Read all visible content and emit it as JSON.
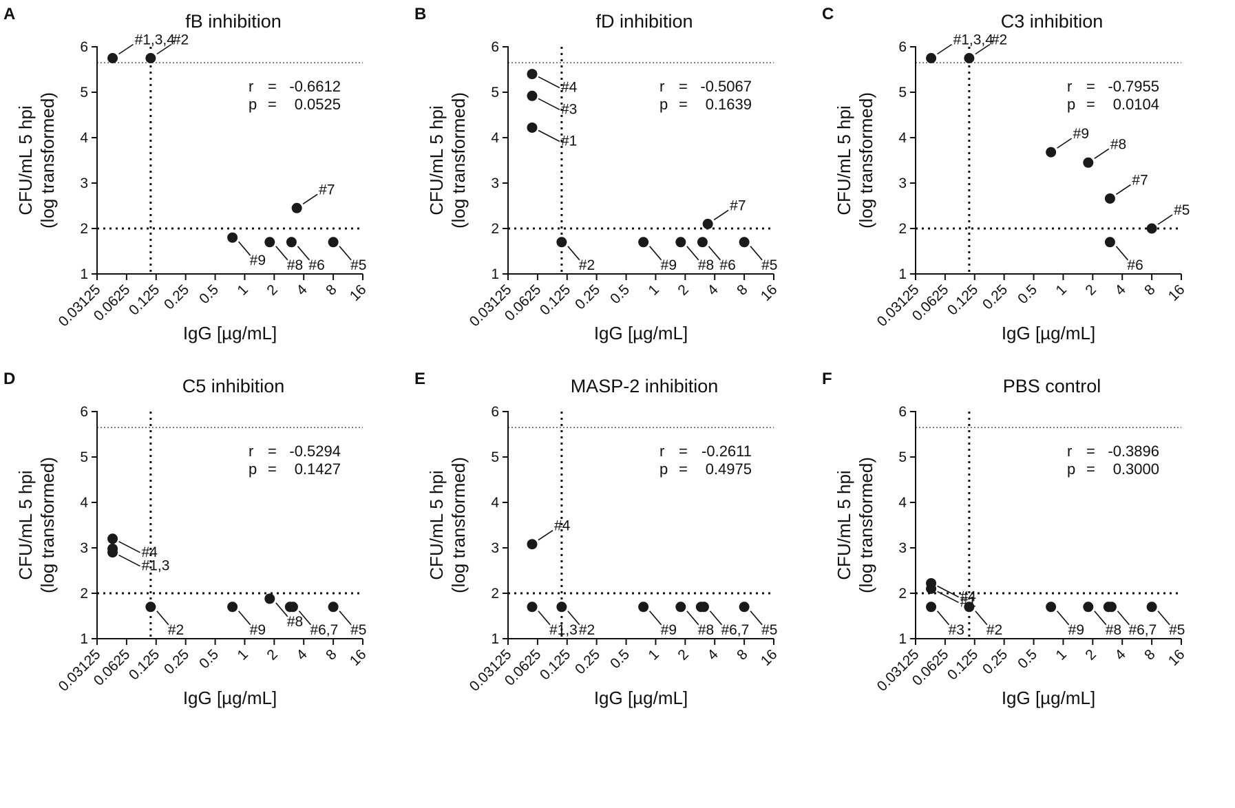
{
  "figure": {
    "shared": {
      "xlabel": "IgG [µg/mL]",
      "ylabel_line1": "CFU/mL 5 hpi",
      "ylabel_line2": "(log transformed)",
      "x_ticks": [
        "0.03125",
        "0.0625",
        "0.125",
        "0.25",
        "0.5",
        "1",
        "2",
        "4",
        "8",
        "16"
      ],
      "y_ticks": [
        "1",
        "2",
        "3",
        "4",
        "5",
        "6"
      ],
      "r_label": "r",
      "p_label": "p",
      "equals": "="
    }
  },
  "chart_data": [
    {
      "type": "scatter",
      "panel": "A",
      "title": "fB inhibition",
      "x_scale": "log2",
      "xlim": [
        0.03125,
        16
      ],
      "ylim": [
        1,
        6
      ],
      "reference_lines": {
        "y_threshold": 2,
        "x_threshold": 0.11,
        "y_detection_limit": 5.65
      },
      "r": "-0.6612",
      "p": "0.0525",
      "points": [
        {
          "x": 0.045,
          "y": 5.75,
          "label": "#1,3,4"
        },
        {
          "x": 0.11,
          "y": 5.75,
          "label": "#2"
        },
        {
          "x": 3.4,
          "y": 2.45,
          "label": "#7"
        },
        {
          "x": 0.75,
          "y": 1.8,
          "label": "#9"
        },
        {
          "x": 1.8,
          "y": 1.7,
          "label": "#8"
        },
        {
          "x": 3.0,
          "y": 1.7,
          "label": "#6"
        },
        {
          "x": 8.0,
          "y": 1.7,
          "label": "#5"
        }
      ]
    },
    {
      "type": "scatter",
      "panel": "B",
      "title": "fD inhibition",
      "x_scale": "log2",
      "xlim": [
        0.03125,
        16
      ],
      "ylim": [
        1,
        6
      ],
      "reference_lines": {
        "y_threshold": 2,
        "x_threshold": 0.11,
        "y_detection_limit": 5.65
      },
      "r": "-0.5067",
      "p": "0.1639",
      "points": [
        {
          "x": 0.055,
          "y": 5.4,
          "label": "#4"
        },
        {
          "x": 0.055,
          "y": 4.92,
          "label": "#3"
        },
        {
          "x": 0.055,
          "y": 4.22,
          "label": "#1"
        },
        {
          "x": 0.11,
          "y": 1.7,
          "label": "#2"
        },
        {
          "x": 3.4,
          "y": 2.1,
          "label": "#7"
        },
        {
          "x": 0.75,
          "y": 1.7,
          "label": "#9"
        },
        {
          "x": 1.8,
          "y": 1.7,
          "label": "#8"
        },
        {
          "x": 3.0,
          "y": 1.7,
          "label": "#6"
        },
        {
          "x": 8.0,
          "y": 1.7,
          "label": "#5"
        }
      ]
    },
    {
      "type": "scatter",
      "panel": "C",
      "title": "C3 inhibition",
      "x_scale": "log2",
      "xlim": [
        0.03125,
        16
      ],
      "ylim": [
        1,
        6
      ],
      "reference_lines": {
        "y_threshold": 2,
        "x_threshold": 0.11,
        "y_detection_limit": 5.65
      },
      "r": "-0.7955",
      "p": "0.0104",
      "points": [
        {
          "x": 0.045,
          "y": 5.75,
          "label": "#1,3,4"
        },
        {
          "x": 0.11,
          "y": 5.75,
          "label": "#2"
        },
        {
          "x": 0.75,
          "y": 3.68,
          "label": "#9"
        },
        {
          "x": 1.8,
          "y": 3.45,
          "label": "#8"
        },
        {
          "x": 3.0,
          "y": 2.66,
          "label": "#7"
        },
        {
          "x": 8.0,
          "y": 2.0,
          "label": "#5"
        },
        {
          "x": 3.0,
          "y": 1.7,
          "label": "#6"
        }
      ]
    },
    {
      "type": "scatter",
      "panel": "D",
      "title": "C5 inhibition",
      "x_scale": "log2",
      "xlim": [
        0.03125,
        16
      ],
      "ylim": [
        1,
        6
      ],
      "reference_lines": {
        "y_threshold": 2,
        "x_threshold": 0.11,
        "y_detection_limit": 5.65
      },
      "r": "-0.5294",
      "p": "0.1427",
      "points": [
        {
          "x": 0.045,
          "y": 3.2,
          "label": "#4"
        },
        {
          "x": 0.045,
          "y": 2.98,
          "label": ""
        },
        {
          "x": 0.045,
          "y": 2.9,
          "label": "#1,3"
        },
        {
          "x": 0.11,
          "y": 1.7,
          "label": "#2"
        },
        {
          "x": 0.75,
          "y": 1.7,
          "label": "#9"
        },
        {
          "x": 1.8,
          "y": 1.88,
          "label": "#8"
        },
        {
          "x": 2.9,
          "y": 1.7,
          "label": ""
        },
        {
          "x": 3.1,
          "y": 1.7,
          "label": "#6,7"
        },
        {
          "x": 8.0,
          "y": 1.7,
          "label": "#5"
        }
      ]
    },
    {
      "type": "scatter",
      "panel": "E",
      "title": "MASP-2 inhibition",
      "x_scale": "log2",
      "xlim": [
        0.03125,
        16
      ],
      "ylim": [
        1,
        6
      ],
      "reference_lines": {
        "y_threshold": 2,
        "x_threshold": 0.11,
        "y_detection_limit": 5.65
      },
      "r": "-0.2611",
      "p": "0.4975",
      "points": [
        {
          "x": 0.055,
          "y": 3.08,
          "label": "#4"
        },
        {
          "x": 0.055,
          "y": 1.7,
          "label": "#1,3"
        },
        {
          "x": 0.11,
          "y": 1.7,
          "label": "#2"
        },
        {
          "x": 0.75,
          "y": 1.7,
          "label": "#9"
        },
        {
          "x": 1.8,
          "y": 1.7,
          "label": "#8"
        },
        {
          "x": 2.9,
          "y": 1.7,
          "label": ""
        },
        {
          "x": 3.1,
          "y": 1.7,
          "label": "#6,7"
        },
        {
          "x": 8.0,
          "y": 1.7,
          "label": "#5"
        }
      ]
    },
    {
      "type": "scatter",
      "panel": "F",
      "title": "PBS control",
      "x_scale": "log2",
      "xlim": [
        0.03125,
        16
      ],
      "ylim": [
        1,
        6
      ],
      "reference_lines": {
        "y_threshold": 2,
        "x_threshold": 0.11,
        "y_detection_limit": 5.65
      },
      "r": "-0.3896",
      "p": "0.3000",
      "points": [
        {
          "x": 0.045,
          "y": 2.22,
          "label": "#4"
        },
        {
          "x": 0.045,
          "y": 2.1,
          "label": "#1"
        },
        {
          "x": 0.045,
          "y": 1.7,
          "label": "#3"
        },
        {
          "x": 0.11,
          "y": 1.7,
          "label": "#2"
        },
        {
          "x": 0.75,
          "y": 1.7,
          "label": "#9"
        },
        {
          "x": 1.8,
          "y": 1.7,
          "label": "#8"
        },
        {
          "x": 2.9,
          "y": 1.7,
          "label": ""
        },
        {
          "x": 3.1,
          "y": 1.7,
          "label": "#6,7"
        },
        {
          "x": 8.0,
          "y": 1.7,
          "label": "#5"
        }
      ]
    }
  ]
}
